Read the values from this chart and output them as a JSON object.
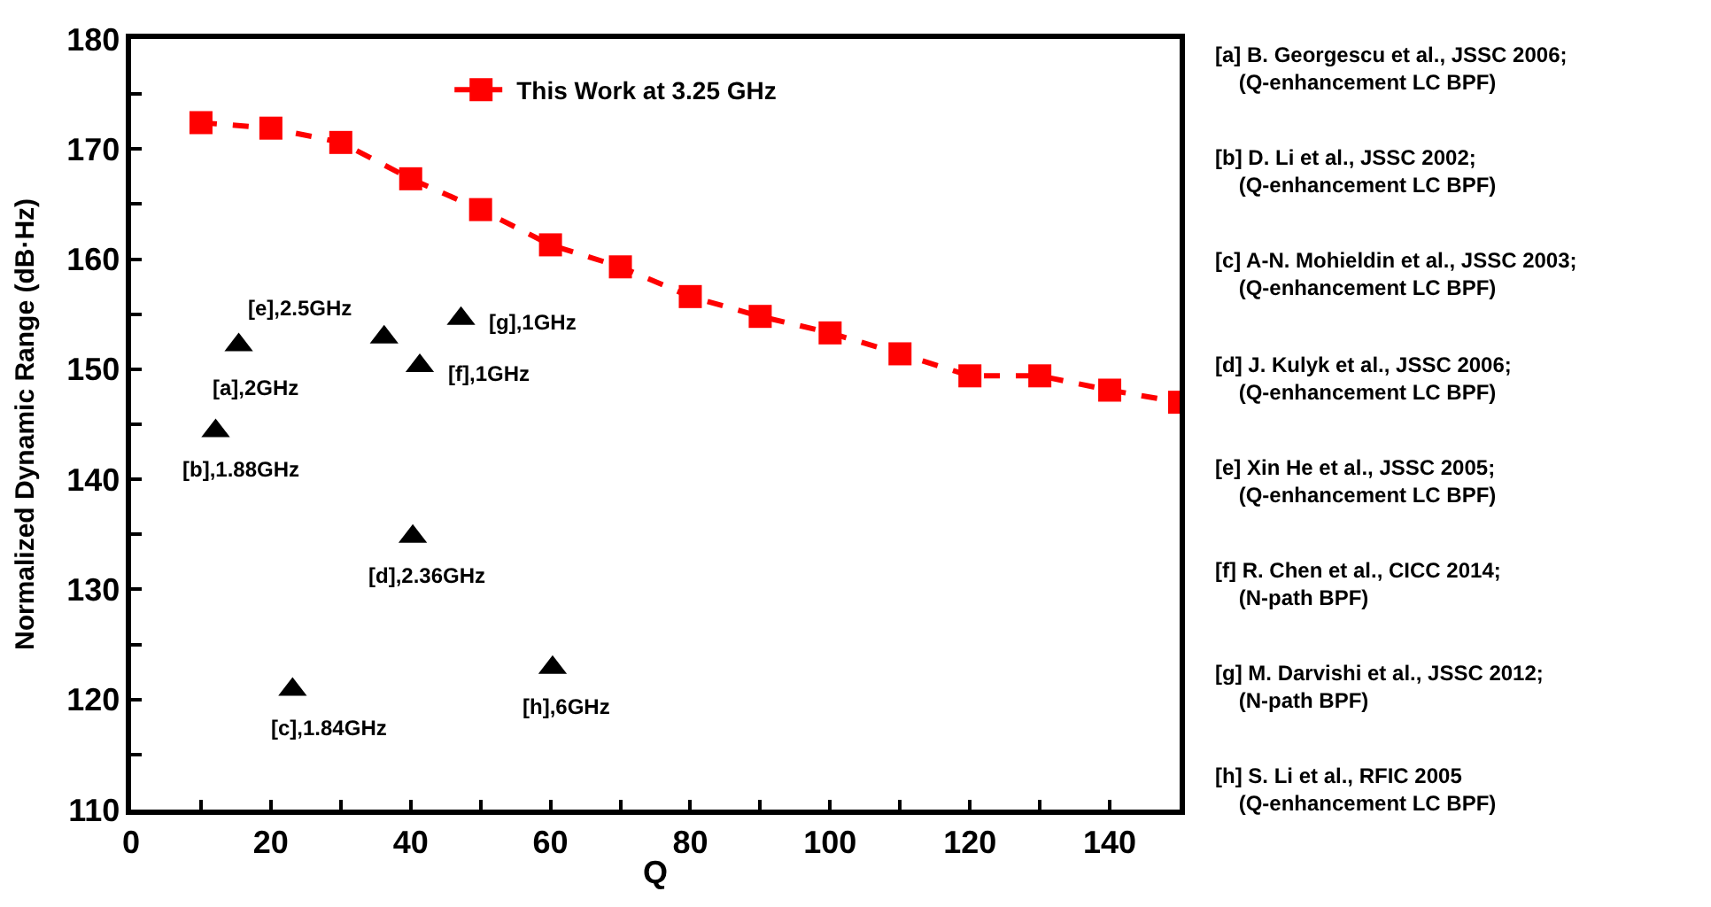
{
  "chart_data": {
    "type": "scatter",
    "xlabel": "Q",
    "ylabel": "Normalized Dynamic Range (dB·Hz)",
    "xlim": [
      0,
      150
    ],
    "xticks": [
      0,
      20,
      40,
      60,
      80,
      100,
      120,
      140
    ],
    "ylim": [
      110,
      180
    ],
    "yticks": [
      110,
      120,
      130,
      140,
      150,
      160,
      170,
      180
    ],
    "grid": false,
    "legend": "top",
    "series": [
      {
        "name": "This Work at 3.25 GHz",
        "type": "line",
        "color": "#ff0000",
        "marker": "square",
        "line_style": "dashed",
        "x": [
          10,
          20,
          30,
          40,
          50,
          60,
          70,
          80,
          90,
          100,
          110,
          120,
          130,
          140,
          150
        ],
        "values": [
          172.4,
          171.9,
          170.6,
          167.3,
          164.5,
          161.3,
          159.3,
          156.6,
          154.8,
          153.3,
          151.4,
          149.4,
          149.4,
          148.1,
          147.0
        ]
      },
      {
        "color": "#000000",
        "marker": "triangle",
        "x": [
          15.4,
          12.1,
          23.1,
          40.3,
          36.2,
          41.3,
          47.2,
          60.3
        ],
        "values": [
          152.2,
          144.4,
          120.9,
          134.8,
          152.9,
          150.3,
          154.6,
          122.9
        ]
      }
    ],
    "annotations": [
      {
        "text": "[a],2GHz",
        "x": 15.4,
        "y": 152.2
      },
      {
        "text": "[b],1.88GHz",
        "x": 12.1,
        "y": 144.4
      },
      {
        "text": "[c],1.84GHz",
        "x": 23.1,
        "y": 120.9
      },
      {
        "text": "[d],2.36GHz",
        "x": 40.3,
        "y": 134.8
      },
      {
        "text": "[e],2.5GHz",
        "x": 36.2,
        "y": 152.9
      },
      {
        "text": "[f],1GHz",
        "x": 41.3,
        "y": 150.3
      },
      {
        "text": "[g],1GHz",
        "x": 47.2,
        "y": 154.6
      },
      {
        "text": "[h],6GHz",
        "x": 60.3,
        "y": 122.9
      },
      "[a] B. Georgescu et al., JSSC 2006;\n    (Q-enhancement LC BPF)",
      "[b] D. Li et al., JSSC 2002;\n    (Q-enhancement LC BPF)",
      "[c] A-N. Mohieldin et al., JSSC 2003;\n    (Q-enhancement LC BPF)",
      "[d] J. Kulyk et al., JSSC 2006;\n    (Q-enhancement LC BPF)",
      "[e] Xin He et al., JSSC 2005;\n    (Q-enhancement LC BPF)",
      "[f] R. Chen et al., CICC 2014;\n    (N-path BPF)",
      "[g] M. Darvishi et al., JSSC 2012;\n    (N-path BPF)",
      "[h] S. Li et al., RFIC 2005\n    (Q-enhancement LC BPF)"
    ]
  }
}
